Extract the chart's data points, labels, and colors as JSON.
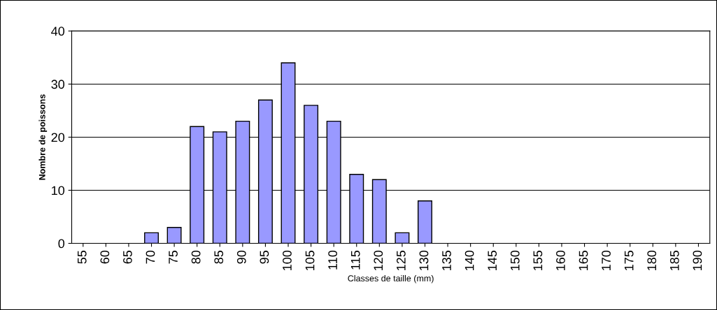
{
  "chart_data": {
    "type": "bar",
    "xlabel": "Classes de taille (mm)",
    "ylabel": "Nombre de poissons",
    "categories": [
      "55",
      "60",
      "65",
      "70",
      "75",
      "80",
      "85",
      "90",
      "95",
      "100",
      "105",
      "110",
      "115",
      "120",
      "125",
      "130",
      "135",
      "140",
      "145",
      "150",
      "155",
      "160",
      "165",
      "170",
      "175",
      "180",
      "185",
      "190"
    ],
    "values": [
      0,
      0,
      0,
      2,
      3,
      22,
      21,
      23,
      27,
      34,
      26,
      23,
      13,
      12,
      2,
      8,
      0,
      0,
      0,
      0,
      0,
      0,
      0,
      0,
      0,
      0,
      0,
      0
    ],
    "color": "#9999ff",
    "ylim": [
      0,
      40
    ],
    "yticks": [
      0,
      10,
      20,
      30,
      40
    ],
    "grid": "y",
    "legend": false
  }
}
